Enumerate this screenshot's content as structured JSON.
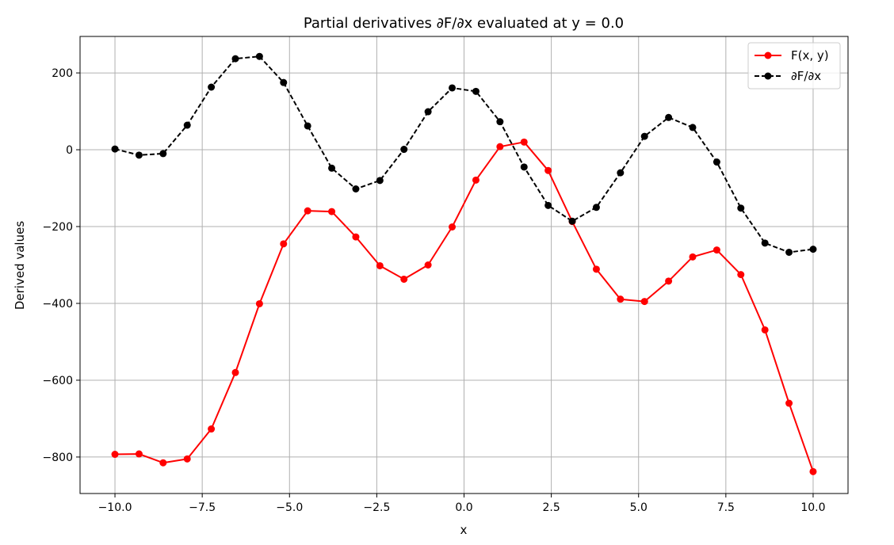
{
  "chart_data": {
    "type": "line",
    "title": "Partial derivatives ∂F/∂x evaluated at y = 0.0",
    "xlabel": "x",
    "ylabel": "Derived values",
    "xlim": [
      -11.0,
      11.0
    ],
    "ylim": [
      -895,
      295
    ],
    "xticks": [
      -10.0,
      -7.5,
      -5.0,
      -2.5,
      0.0,
      2.5,
      5.0,
      7.5,
      10.0
    ],
    "xtick_labels": [
      "−10.0",
      "−7.5",
      "−5.0",
      "−2.5",
      "0.0",
      "2.5",
      "5.0",
      "7.5",
      "10.0"
    ],
    "yticks": [
      200,
      0,
      -200,
      -400,
      -600,
      -800
    ],
    "ytick_labels": [
      "200",
      "0",
      "−200",
      "−400",
      "−600",
      "−800"
    ],
    "grid": true,
    "legend": "top-right",
    "x": [
      -10.0,
      -9.31,
      -8.62,
      -7.93,
      -7.24,
      -6.55,
      -5.86,
      -5.17,
      -4.48,
      -3.79,
      -3.1,
      -2.41,
      -1.72,
      -1.03,
      -0.34,
      0.34,
      1.03,
      1.72,
      2.41,
      3.1,
      3.79,
      4.48,
      5.17,
      5.86,
      6.55,
      7.24,
      7.93,
      8.62,
      9.31,
      10.0
    ],
    "series": [
      {
        "name": "F(x, y)",
        "color": "#ff0000",
        "style": "solid",
        "values": [
          -793,
          -792,
          -815,
          -805,
          -727,
          -580,
          -401,
          -245,
          -159,
          -161,
          -227,
          -302,
          -337,
          -300,
          -201,
          -79,
          8,
          20,
          -54,
          -187,
          -311,
          -389,
          -395,
          -342,
          -279,
          -261,
          -325,
          -469,
          -660,
          -838
        ]
      },
      {
        "name": "∂F/∂x",
        "color": "#000000",
        "style": "dashed",
        "values": [
          2,
          -14,
          -10,
          64,
          163,
          237,
          243,
          175,
          62,
          -48,
          -102,
          -80,
          1,
          99,
          161,
          152,
          73,
          -45,
          -145,
          -186,
          -150,
          -60,
          35,
          84,
          58,
          -32,
          -152,
          -243,
          -267,
          -259
        ]
      }
    ]
  }
}
